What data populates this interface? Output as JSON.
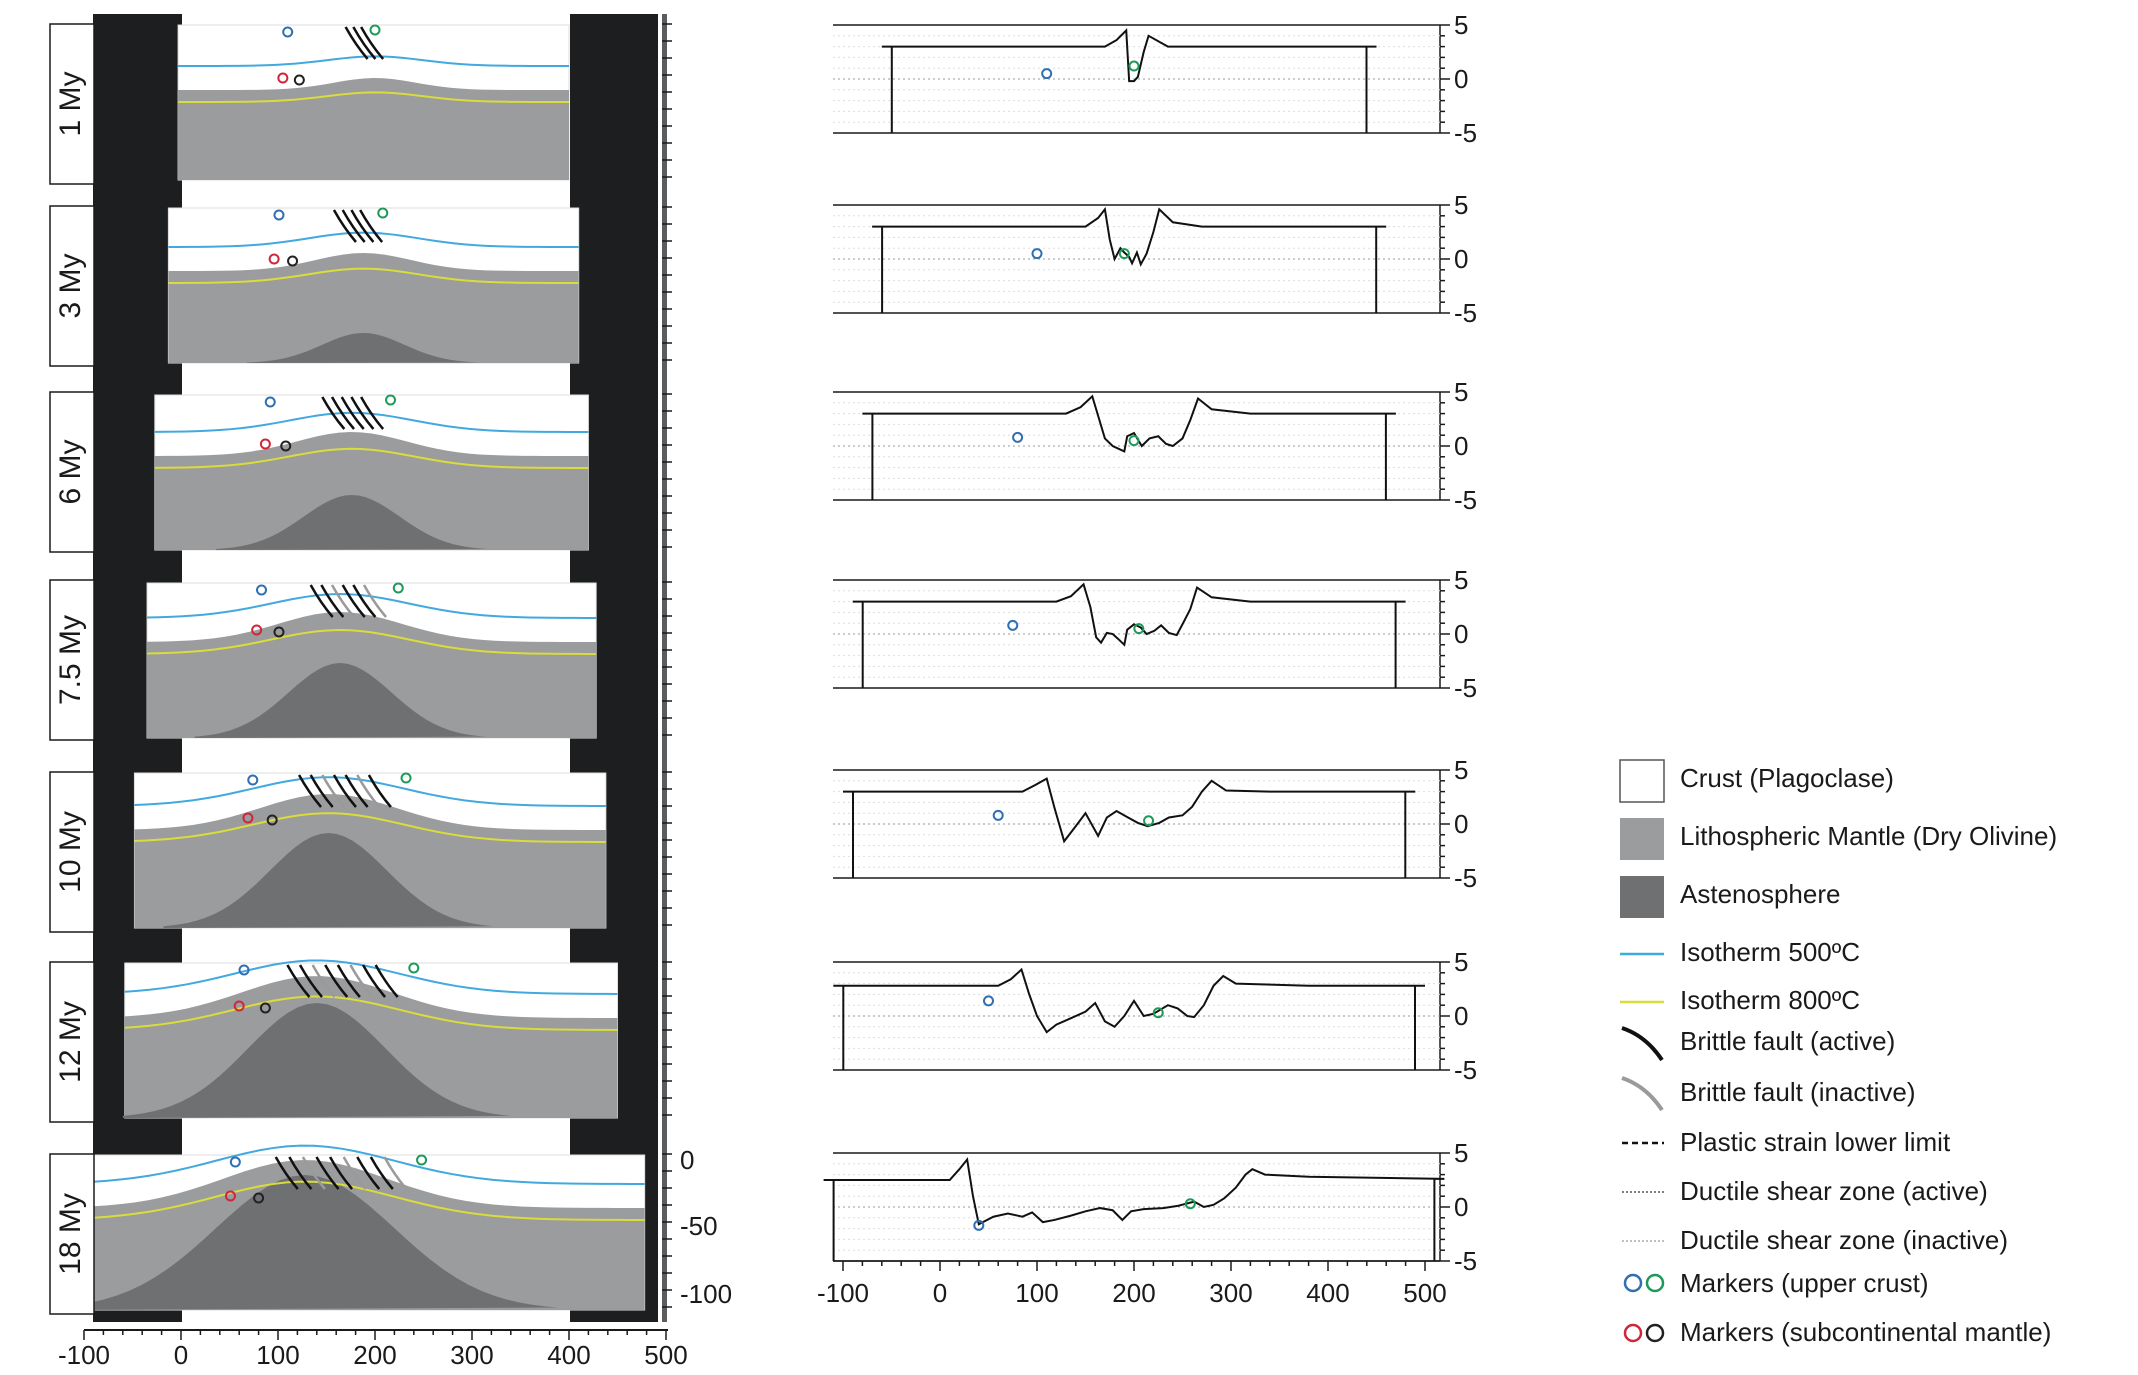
{
  "stages": [
    {
      "age": "1 My",
      "topo": [
        [
          -60,
          3
        ],
        [
          170,
          3
        ],
        [
          182,
          3.6
        ],
        [
          192,
          4.5
        ],
        [
          195,
          -0.2
        ],
        [
          200,
          -0.2
        ],
        [
          204,
          0.2
        ],
        [
          210,
          2.5
        ],
        [
          215,
          4
        ],
        [
          235,
          3
        ],
        [
          450,
          3
        ]
      ],
      "blue_marker": [
        110,
        0.5
      ],
      "green_marker": [
        200,
        1.2
      ]
    },
    {
      "age": "3 My",
      "topo": [
        [
          -70,
          3
        ],
        [
          150,
          3
        ],
        [
          163,
          3.8
        ],
        [
          170,
          4.6
        ],
        [
          175,
          1.8
        ],
        [
          180,
          0
        ],
        [
          186,
          1
        ],
        [
          190,
          0.6
        ],
        [
          195,
          0.2
        ],
        [
          198,
          -0.4
        ],
        [
          203,
          0.6
        ],
        [
          207,
          -0.5
        ],
        [
          213,
          0.5
        ],
        [
          220,
          2.5
        ],
        [
          226,
          4.6
        ],
        [
          240,
          3.4
        ],
        [
          270,
          3
        ],
        [
          460,
          3
        ]
      ],
      "blue_marker": [
        100,
        0.5
      ],
      "green_marker": [
        190,
        0.5
      ]
    },
    {
      "age": "6 My",
      "topo": [
        [
          -80,
          3
        ],
        [
          130,
          3
        ],
        [
          145,
          3.6
        ],
        [
          157,
          4.6
        ],
        [
          163,
          2.8
        ],
        [
          170,
          0.7
        ],
        [
          178,
          0
        ],
        [
          190,
          -0.5
        ],
        [
          193,
          0.9
        ],
        [
          200,
          1.2
        ],
        [
          208,
          0
        ],
        [
          216,
          0.7
        ],
        [
          225,
          0.9
        ],
        [
          233,
          0.2
        ],
        [
          240,
          0
        ],
        [
          250,
          0.7
        ],
        [
          258,
          2.4
        ],
        [
          266,
          4.4
        ],
        [
          280,
          3.4
        ],
        [
          320,
          3
        ],
        [
          470,
          3
        ]
      ],
      "blue_marker": [
        80,
        0.8
      ],
      "green_marker": [
        200,
        0.5
      ]
    },
    {
      "age": "7.5 My",
      "topo": [
        [
          -90,
          3
        ],
        [
          120,
          3
        ],
        [
          135,
          3.5
        ],
        [
          148,
          4.6
        ],
        [
          155,
          2.5
        ],
        [
          161,
          -0.3
        ],
        [
          166,
          -0.8
        ],
        [
          172,
          0.1
        ],
        [
          178,
          0
        ],
        [
          183,
          -0.4
        ],
        [
          190,
          -1
        ],
        [
          193,
          0.4
        ],
        [
          200,
          0.9
        ],
        [
          207,
          0.6
        ],
        [
          213,
          0
        ],
        [
          221,
          0.3
        ],
        [
          228,
          0.8
        ],
        [
          236,
          0.1
        ],
        [
          244,
          -0.1
        ],
        [
          250,
          0.9
        ],
        [
          258,
          2.3
        ],
        [
          265,
          4.3
        ],
        [
          280,
          3.4
        ],
        [
          320,
          3
        ],
        [
          480,
          3
        ]
      ],
      "blue_marker": [
        75,
        0.8
      ],
      "green_marker": [
        205,
        0.5
      ]
    },
    {
      "age": "10 My",
      "topo": [
        [
          -100,
          3
        ],
        [
          85,
          3
        ],
        [
          98,
          3.6
        ],
        [
          110,
          4.2
        ],
        [
          118,
          1.5
        ],
        [
          128,
          -1.6
        ],
        [
          140,
          -0.2
        ],
        [
          150,
          1
        ],
        [
          163,
          -1.1
        ],
        [
          172,
          0.6
        ],
        [
          182,
          1.2
        ],
        [
          192,
          0.7
        ],
        [
          204,
          0.1
        ],
        [
          214,
          -0.2
        ],
        [
          226,
          0.1
        ],
        [
          236,
          0.6
        ],
        [
          250,
          0.8
        ],
        [
          260,
          1.6
        ],
        [
          270,
          3
        ],
        [
          280,
          4
        ],
        [
          295,
          3.1
        ],
        [
          340,
          3
        ],
        [
          490,
          3
        ]
      ],
      "blue_marker": [
        60,
        0.8
      ],
      "green_marker": [
        215,
        0.3
      ]
    },
    {
      "age": "12 My",
      "topo": [
        [
          -110,
          2.8
        ],
        [
          60,
          2.8
        ],
        [
          73,
          3.4
        ],
        [
          84,
          4.3
        ],
        [
          92,
          2
        ],
        [
          100,
          0
        ],
        [
          110,
          -1.5
        ],
        [
          120,
          -0.8
        ],
        [
          135,
          -0.2
        ],
        [
          150,
          0.4
        ],
        [
          160,
          1.2
        ],
        [
          170,
          -0.5
        ],
        [
          180,
          -1
        ],
        [
          190,
          0
        ],
        [
          200,
          1.4
        ],
        [
          210,
          0
        ],
        [
          220,
          0.2
        ],
        [
          235,
          1
        ],
        [
          245,
          0.7
        ],
        [
          255,
          0
        ],
        [
          262,
          -0.1
        ],
        [
          272,
          1
        ],
        [
          282,
          2.8
        ],
        [
          292,
          3.7
        ],
        [
          305,
          3
        ],
        [
          380,
          2.8
        ],
        [
          500,
          2.8
        ]
      ],
      "blue_marker": [
        50,
        1.4
      ],
      "green_marker": [
        225,
        0.3
      ]
    },
    {
      "age": "18 My",
      "topo": [
        [
          -120,
          2.5
        ],
        [
          10,
          2.5
        ],
        [
          20,
          3.5
        ],
        [
          28,
          4.4
        ],
        [
          34,
          1
        ],
        [
          40,
          -1.6
        ],
        [
          55,
          -0.9
        ],
        [
          70,
          -0.6
        ],
        [
          85,
          -0.9
        ],
        [
          95,
          -0.5
        ],
        [
          106,
          -1.4
        ],
        [
          118,
          -1.2
        ],
        [
          135,
          -0.8
        ],
        [
          150,
          -0.4
        ],
        [
          165,
          -0.1
        ],
        [
          178,
          -0.3
        ],
        [
          188,
          -1.2
        ],
        [
          197,
          -0.4
        ],
        [
          210,
          -0.2
        ],
        [
          230,
          -0.1
        ],
        [
          245,
          0.1
        ],
        [
          262,
          0.5
        ],
        [
          272,
          0
        ],
        [
          282,
          0.2
        ],
        [
          293,
          0.8
        ],
        [
          305,
          1.8
        ],
        [
          315,
          3
        ],
        [
          322,
          3.5
        ],
        [
          335,
          3
        ],
        [
          380,
          2.8
        ],
        [
          520,
          2.6
        ]
      ],
      "blue_marker": [
        40,
        -1.7
      ],
      "green_marker": [
        258,
        0.3
      ]
    }
  ],
  "left_axis": {
    "x_ticks": [
      "-100",
      "0",
      "100",
      "200",
      "300",
      "400",
      "500"
    ],
    "y_ticks": [
      "0",
      "-50",
      "-100"
    ]
  },
  "right_axis": {
    "x_ticks": [
      "-100",
      "0",
      "100",
      "200",
      "300",
      "400",
      "500"
    ],
    "y_ticks": [
      "5",
      "0",
      "-5"
    ]
  },
  "legend": [
    {
      "label": "Crust (Plagoclase)",
      "icon": "white-box"
    },
    {
      "label": "Lithospheric Mantle (Dry Olivine)",
      "icon": "grey-box"
    },
    {
      "label": "Astenosphere",
      "icon": "dark-grey-box"
    },
    {
      "label": "Isotherm 500ºC",
      "icon": "blue-line"
    },
    {
      "label": "Isotherm 800ºC",
      "icon": "yellow-line"
    },
    {
      "label": "Brittle fault (active)",
      "icon": "black-fault"
    },
    {
      "label": "Brittle fault (inactive)",
      "icon": "grey-fault"
    },
    {
      "label": "Plastic strain lower limit",
      "icon": "dashed-line"
    },
    {
      "label": "Ductile shear zone (active)",
      "icon": "dotted-line-dark"
    },
    {
      "label": "Ductile shear zone (inactive)",
      "icon": "dotted-line-light"
    },
    {
      "label": "Markers (upper crust)",
      "icon": "blue-green-circles"
    },
    {
      "label": "Markers (subcontinental mantle)",
      "icon": "red-black-circles"
    }
  ],
  "colors": {
    "crust": "#ffffff",
    "mantle": "#9b9c9e",
    "asthenosphere": "#6e7072",
    "isotherm_500": "#41a9df",
    "isotherm_800": "#d8dc3c",
    "background_frame": "#1c1e20",
    "marker_blue": "#2f6fb2",
    "marker_green": "#1d9a5a",
    "marker_red": "#d0263a",
    "marker_black": "#222222"
  }
}
